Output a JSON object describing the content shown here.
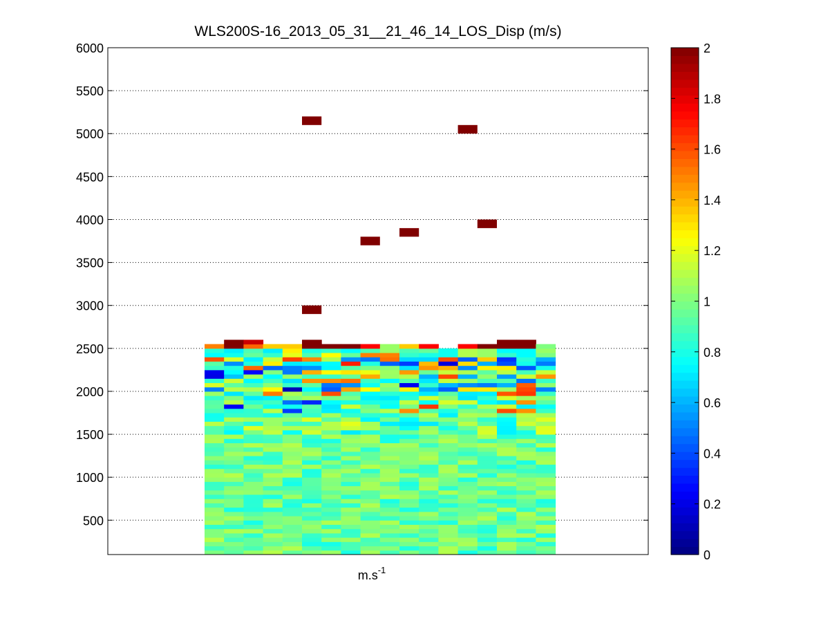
{
  "chart_data": {
    "type": "heatmap",
    "title": "WLS200S-16_2013_05_31__21_46_14_LOS_Disp (m/s)",
    "xlabel": "m.s",
    "xlabel_superscript": "-1",
    "ylim": [
      100,
      6000
    ],
    "yticks": [
      500,
      1000,
      1500,
      2000,
      2500,
      3000,
      3500,
      4000,
      4500,
      5000,
      5500,
      6000
    ],
    "grid": "horizontal dotted",
    "colorbar": {
      "colormap": "jet",
      "clim": [
        0,
        2
      ],
      "ticks": [
        0,
        0.2,
        0.4,
        0.6,
        0.8,
        1,
        1.2,
        1.4,
        1.6,
        1.8,
        2
      ],
      "tick_labels": [
        "0",
        "0.2",
        "0.4",
        "0.6",
        "0.8",
        "1",
        "1.2",
        "1.4",
        "1.6",
        "1.8",
        "2"
      ]
    },
    "field": {
      "columns": 18,
      "altitude_range": [
        100,
        2500
      ],
      "typical_value": 0.95,
      "value_range": [
        0.1,
        2.0
      ]
    },
    "upper_band": {
      "altitude_bins": [
        2400,
        2450,
        2500,
        2550,
        2600
      ],
      "columns": [
        {
          "col": 0,
          "values": [
            0.75,
            0.82,
            1.5,
            null,
            null
          ]
        },
        {
          "col": 1,
          "values": [
            0.78,
            0.72,
            2.0,
            2.0,
            null
          ]
        },
        {
          "col": 2,
          "values": [
            0.95,
            0.9,
            1.55,
            1.85,
            null
          ]
        },
        {
          "col": 3,
          "values": [
            0.85,
            0.72,
            1.35,
            null,
            null
          ]
        },
        {
          "col": 4,
          "values": [
            1.2,
            1.28,
            1.35,
            null,
            null
          ]
        },
        {
          "col": 5,
          "values": [
            0.9,
            0.8,
            2.0,
            2.0,
            null
          ]
        },
        {
          "col": 6,
          "values": [
            1.25,
            0.85,
            2.0,
            null,
            null
          ]
        },
        {
          "col": 7,
          "values": [
            0.95,
            0.75,
            2.0,
            null,
            null
          ]
        },
        {
          "col": 8,
          "values": [
            1.5,
            0.9,
            1.75,
            null,
            null
          ]
        },
        {
          "col": 9,
          "values": [
            1.5,
            1.05,
            1.05,
            null,
            null
          ]
        },
        {
          "col": 10,
          "values": [
            0.85,
            0.9,
            1.35,
            null,
            null
          ]
        },
        {
          "col": 11,
          "values": [
            0.8,
            0.95,
            1.75,
            null,
            null
          ]
        },
        {
          "col": 12,
          "values": [
            0.78,
            0.78,
            null,
            null,
            null
          ]
        },
        {
          "col": 13,
          "values": [
            1.1,
            1.1,
            1.75,
            null,
            null
          ]
        },
        {
          "col": 14,
          "values": [
            1.05,
            1.05,
            2.0,
            null,
            null
          ]
        },
        {
          "col": 15,
          "values": [
            0.85,
            0.75,
            2.0,
            2.0,
            null
          ]
        },
        {
          "col": 16,
          "values": [
            0.75,
            0.75,
            2.0,
            2.0,
            null
          ]
        },
        {
          "col": 17,
          "values": [
            1.0,
            1.05,
            1.0,
            null,
            null
          ]
        }
      ]
    },
    "outliers": [
      {
        "col": 5,
        "altitude": 2950,
        "value": 2.0
      },
      {
        "col": 5,
        "altitude": 5150,
        "value": 2.0
      },
      {
        "col": 8,
        "altitude": 3750,
        "value": 2.0
      },
      {
        "col": 10,
        "altitude": 3850,
        "value": 2.0
      },
      {
        "col": 13,
        "altitude": 5050,
        "value": 2.0
      },
      {
        "col": 14,
        "altitude": 3950,
        "value": 2.0
      }
    ]
  }
}
